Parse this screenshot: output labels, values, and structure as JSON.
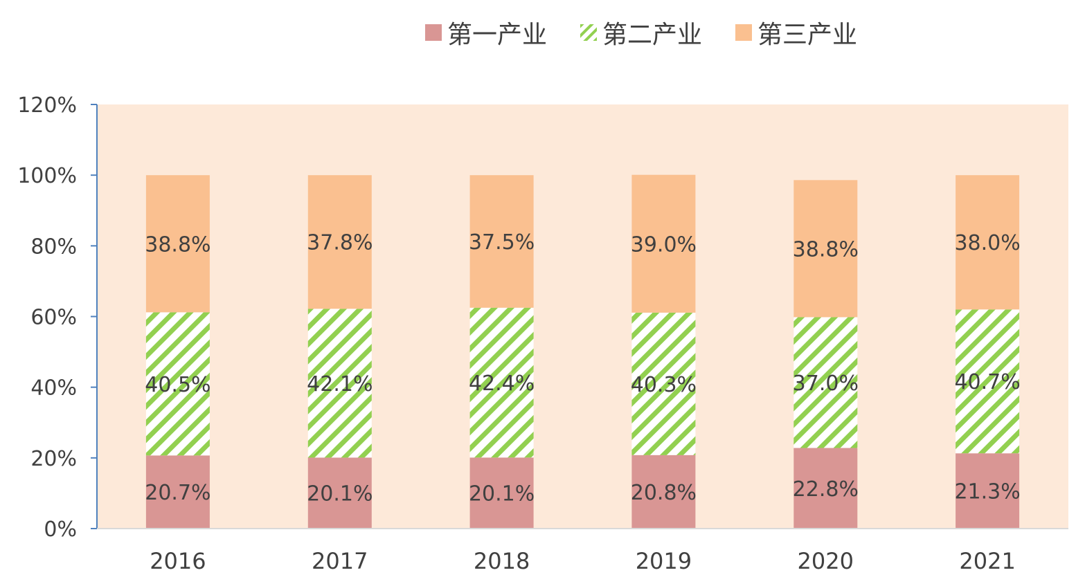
{
  "chart_data": {
    "type": "bar",
    "stacked": true,
    "categories": [
      "2016",
      "2017",
      "2018",
      "2019",
      "2020",
      "2021"
    ],
    "series": [
      {
        "name": "第一产业",
        "color": "#d99694",
        "pattern": "solid",
        "values": [
          20.7,
          20.1,
          20.1,
          20.8,
          22.8,
          21.3
        ],
        "labels": [
          "20.7%",
          "20.1%",
          "20.1%",
          "20.8%",
          "22.8%",
          "21.3%"
        ]
      },
      {
        "name": "第二产业",
        "color": "#92d050",
        "pattern": "diagonal-hatch",
        "values": [
          40.5,
          42.1,
          42.4,
          40.3,
          37.0,
          40.7
        ],
        "labels": [
          "40.5%",
          "42.1%",
          "42.4%",
          "40.3%",
          "37.0%",
          "40.7%"
        ]
      },
      {
        "name": "第三产业",
        "color": "#fac090",
        "pattern": "solid",
        "values": [
          38.8,
          37.8,
          37.5,
          39.0,
          38.8,
          38.0
        ],
        "labels": [
          "38.8%",
          "37.8%",
          "37.5%",
          "39.0%",
          "38.8%",
          "38.0%"
        ]
      }
    ],
    "ylim": [
      0,
      120
    ],
    "yticks": [
      0,
      20,
      40,
      60,
      80,
      100,
      120
    ],
    "ytick_labels": [
      "0%",
      "20%",
      "40%",
      "60%",
      "80%",
      "100%",
      "120%"
    ],
    "plot_background": "#fde9d9",
    "grid": false,
    "legend_position": "top"
  }
}
